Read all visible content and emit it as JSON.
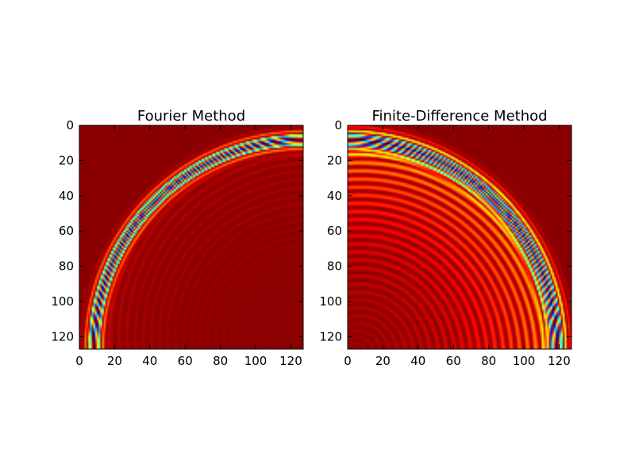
{
  "chart_data": [
    {
      "type": "heatmap",
      "title": "Fourier Method",
      "xlabel": "",
      "ylabel": "",
      "xlim": [
        0,
        127
      ],
      "ylim": [
        127,
        0
      ],
      "xticks": [
        "0",
        "20",
        "40",
        "60",
        "80",
        "100",
        "120"
      ],
      "yticks": [
        "0",
        "20",
        "40",
        "60",
        "80",
        "100",
        "120"
      ],
      "colormap": "jet",
      "grid": false,
      "field": {
        "shape": "quarter-circle wavefront",
        "center": [
          127,
          127
        ],
        "radius": 119,
        "width": 3,
        "ringing": "inside",
        "ringing_amplitude": 0.05
      }
    },
    {
      "type": "heatmap",
      "title": "Finite-Difference Method",
      "xlabel": "",
      "ylabel": "",
      "xlim": [
        0,
        127
      ],
      "ylim": [
        127,
        0
      ],
      "xticks": [
        "0",
        "20",
        "40",
        "60",
        "80",
        "100",
        "120"
      ],
      "yticks": [
        "0",
        "20",
        "40",
        "60",
        "80",
        "100",
        "120"
      ],
      "colormap": "jet",
      "grid": false,
      "field": {
        "shape": "quarter-circle wavefront",
        "center": [
          0,
          127
        ],
        "radius": 119,
        "width": 4,
        "ringing": "inside",
        "ringing_amplitude": 0.35
      }
    }
  ]
}
